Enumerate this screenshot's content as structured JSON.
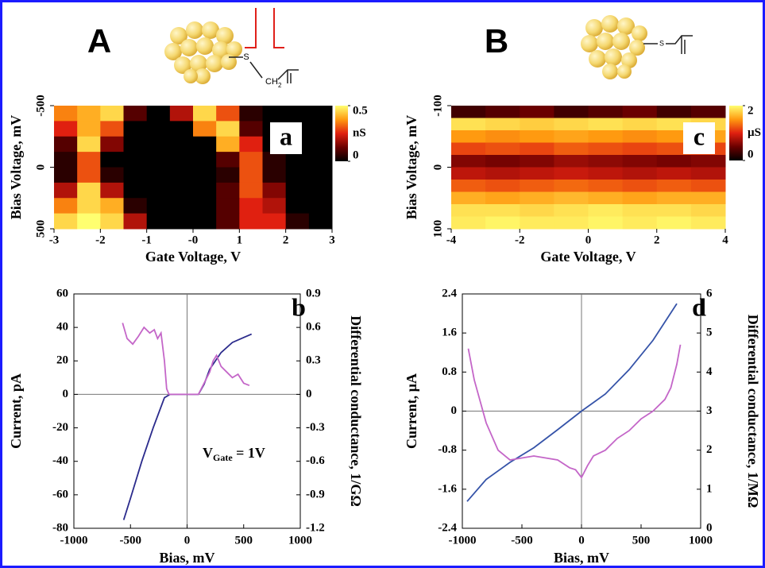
{
  "figure": {
    "panel_labels": [
      "A",
      "B"
    ],
    "molecule_labels": [
      "S",
      "CH",
      "2",
      "S"
    ]
  },
  "chart_data": [
    {
      "type": "heatmap",
      "panel_label": "a",
      "xlabel": "Gate Voltage, V",
      "ylabel": "Bias  Voltage, mV",
      "xlim": [
        -3,
        3
      ],
      "ylim": [
        500,
        -500
      ],
      "xticks": [
        -3,
        -2,
        -1,
        {
          "value": 0,
          "label": "-0"
        },
        1,
        2,
        3
      ],
      "yticks": [
        -500,
        0,
        500
      ],
      "x": [
        -2.75,
        -2.25,
        -1.75,
        -1.25,
        -0.75,
        -0.25,
        0.25,
        0.75,
        1.25,
        1.75,
        2.25,
        2.75
      ],
      "y": [
        -437.5,
        -312.5,
        -187.5,
        -62.5,
        62.5,
        187.5,
        312.5,
        437.5
      ],
      "z": [
        [
          0.35,
          0.4,
          0.45,
          0.1,
          0,
          0.2,
          0.45,
          0.3,
          0.05,
          0,
          0,
          0
        ],
        [
          0.25,
          0.4,
          0.3,
          0,
          0,
          0,
          0.35,
          0.45,
          0.1,
          0,
          0,
          0
        ],
        [
          0.1,
          0.45,
          0.15,
          0,
          0,
          0,
          0,
          0.4,
          0.25,
          0,
          0,
          0
        ],
        [
          0.05,
          0.3,
          0,
          0,
          0,
          0,
          0,
          0.1,
          0.3,
          0.05,
          0,
          0
        ],
        [
          0.05,
          0.3,
          0.05,
          0,
          0,
          0,
          0,
          0.05,
          0.3,
          0.05,
          0,
          0
        ],
        [
          0.2,
          0.45,
          0.2,
          0,
          0,
          0,
          0,
          0.1,
          0.3,
          0.15,
          0,
          0
        ],
        [
          0.35,
          0.45,
          0.4,
          0.05,
          0,
          0,
          0,
          0.1,
          0.25,
          0.2,
          0,
          0
        ],
        [
          0.45,
          0.5,
          0.45,
          0.2,
          0,
          0,
          0,
          0.1,
          0.25,
          0.25,
          0.05,
          0
        ]
      ],
      "colorbar": {
        "label": "nS",
        "lim": [
          0,
          0.5
        ],
        "ticks": [
          0,
          0.5
        ]
      }
    },
    {
      "type": "line",
      "panel_label": "b",
      "xlabel": "Bias, mV",
      "ylabel": "Current, pA",
      "y2label": "Differential conductance, 1/GΩ",
      "xlim": [
        -1000,
        1000
      ],
      "ylim": [
        -80,
        60
      ],
      "y2lim": [
        -1.2,
        0.9
      ],
      "xticks": [
        -1000,
        -500,
        0,
        500,
        1000
      ],
      "yticks": [
        -80,
        -60,
        -40,
        -20,
        0,
        20,
        40,
        60
      ],
      "y2ticks": [
        -1.2,
        -0.9,
        -0.6,
        -0.3,
        0,
        0.3,
        0.6,
        0.9
      ],
      "annotation": {
        "text": "V",
        "subscript": "Gate",
        "rest": " = 1V"
      },
      "series": [
        {
          "color": "#2b2b8c",
          "x": [
            -560,
            -500,
            -400,
            -300,
            -200,
            -150,
            100,
            150,
            200,
            300,
            400,
            500,
            570
          ],
          "values": [
            -75,
            -62,
            -40,
            -20,
            -2,
            0,
            0,
            6,
            15,
            25,
            31,
            34,
            36
          ]
        },
        {
          "color": "#c466c8",
          "axis": "y2",
          "x": [
            -570,
            -530,
            -480,
            -430,
            -380,
            -330,
            -290,
            -260,
            -230,
            -200,
            -180,
            -160,
            100,
            150,
            200,
            230,
            260,
            300,
            350,
            400,
            450,
            500,
            550
          ],
          "values": [
            0.64,
            0.5,
            0.45,
            0.52,
            0.6,
            0.55,
            0.58,
            0.5,
            0.55,
            0.3,
            0.05,
            0,
            0,
            0.1,
            0.2,
            0.3,
            0.35,
            0.25,
            0.2,
            0.15,
            0.18,
            0.1,
            0.08
          ]
        }
      ]
    },
    {
      "type": "heatmap",
      "panel_label": "c",
      "xlabel": "Gate Voltage, V",
      "ylabel": "Bias Voltage, mV",
      "xlim": [
        -4,
        4
      ],
      "ylim": [
        100,
        -100
      ],
      "xticks": [
        -4,
        -2,
        0,
        2,
        4
      ],
      "yticks": [
        -100,
        0,
        100
      ],
      "x": [
        -3.5,
        -2.5,
        -1.5,
        -0.5,
        0.5,
        1.5,
        2.5,
        3.5
      ],
      "y": [
        -90,
        -70,
        -50,
        -30,
        -10,
        10,
        30,
        50,
        70,
        90
      ],
      "z": [
        [
          0.3,
          0.4,
          0.5,
          0.3,
          0.4,
          0.5,
          0.3,
          0.4
        ],
        [
          1.85,
          1.8,
          1.75,
          1.8,
          1.85,
          1.8,
          1.85,
          1.8
        ],
        [
          1.5,
          1.45,
          1.5,
          1.55,
          1.5,
          1.45,
          1.5,
          1.55
        ],
        [
          1.15,
          1.2,
          1.15,
          1.25,
          1.2,
          1.15,
          1.2,
          1.15
        ],
        [
          0.6,
          0.55,
          0.6,
          0.7,
          0.65,
          0.6,
          0.55,
          0.6
        ],
        [
          0.85,
          0.8,
          0.85,
          0.9,
          0.85,
          0.8,
          0.85,
          0.8
        ],
        [
          1.25,
          1.2,
          1.25,
          1.3,
          1.25,
          1.2,
          1.25,
          1.2
        ],
        [
          1.6,
          1.55,
          1.6,
          1.65,
          1.6,
          1.55,
          1.6,
          1.6
        ],
        [
          1.85,
          1.85,
          1.8,
          1.85,
          1.9,
          1.85,
          1.85,
          1.8
        ],
        [
          1.9,
          1.95,
          1.9,
          1.9,
          1.95,
          1.9,
          1.95,
          1.9
        ]
      ],
      "colorbar": {
        "label": "µS",
        "lim": [
          0,
          2
        ],
        "ticks": [
          0,
          2
        ]
      }
    },
    {
      "type": "line",
      "panel_label": "d",
      "xlabel": "Bias, mV",
      "ylabel": "Current, µA",
      "y2label": "Differential conductance, 1/MΩ",
      "xlim": [
        -1000,
        1000
      ],
      "ylim": [
        -2.4,
        2.4
      ],
      "y2lim": [
        0,
        6
      ],
      "xticks": [
        -1000,
        -500,
        0,
        500,
        1000
      ],
      "yticks": [
        -2.4,
        -1.6,
        -0.8,
        0,
        0.8,
        1.6,
        2.4
      ],
      "y2ticks": [
        0,
        1,
        2,
        3,
        4,
        5,
        6
      ],
      "series": [
        {
          "color": "#3553a8",
          "x": [
            -960,
            -800,
            -600,
            -400,
            -200,
            0,
            200,
            400,
            600,
            800
          ],
          "values": [
            -1.85,
            -1.4,
            -1.05,
            -0.75,
            -0.38,
            0,
            0.35,
            0.85,
            1.45,
            2.2
          ]
        },
        {
          "color": "#c466c8",
          "axis": "y2",
          "x": [
            -950,
            -900,
            -800,
            -700,
            -600,
            -500,
            -400,
            -300,
            -200,
            -100,
            -50,
            0,
            50,
            100,
            200,
            300,
            400,
            500,
            600,
            700,
            750,
            800,
            830
          ],
          "values": [
            4.6,
            3.8,
            2.7,
            2.0,
            1.75,
            1.8,
            1.85,
            1.8,
            1.75,
            1.55,
            1.5,
            1.3,
            1.6,
            1.85,
            2.0,
            2.3,
            2.5,
            2.8,
            3.0,
            3.3,
            3.6,
            4.2,
            4.7
          ]
        }
      ]
    }
  ]
}
